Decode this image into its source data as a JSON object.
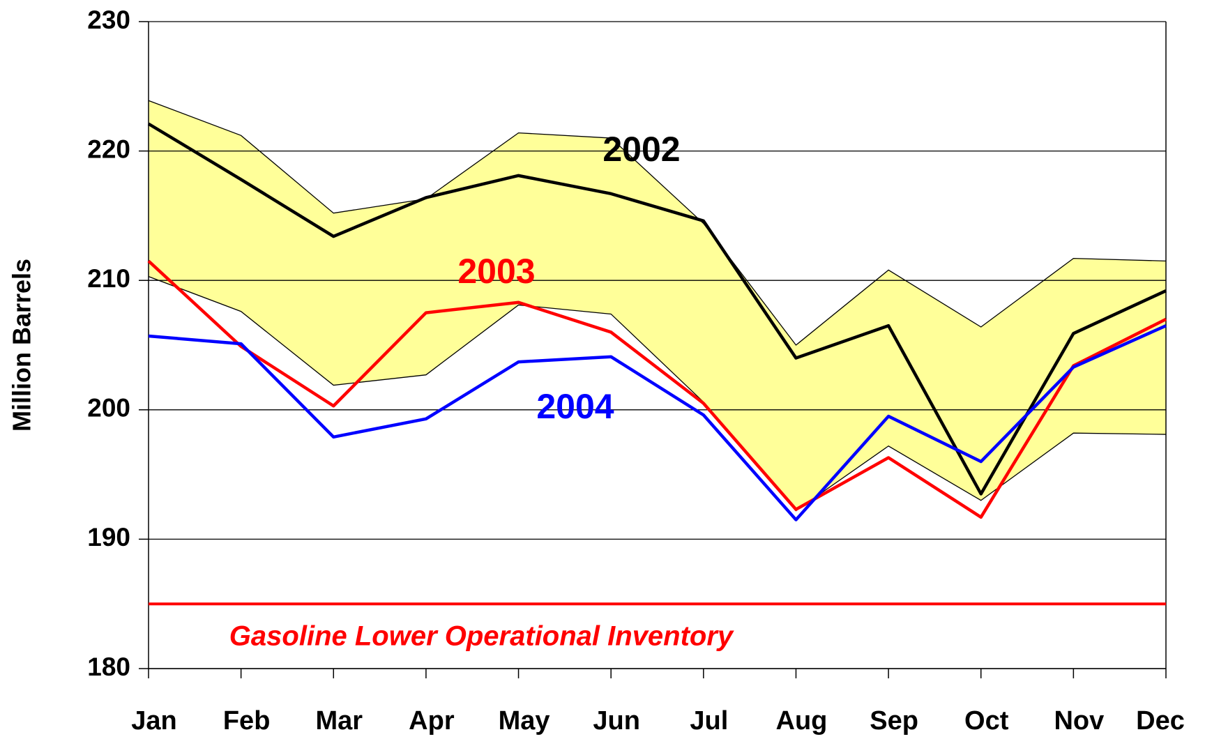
{
  "chart_data": {
    "type": "line",
    "y_label": "Million Barrels",
    "categories": [
      "Jan",
      "Feb",
      "Mar",
      "Apr",
      "May",
      "Jun",
      "Jul",
      "Aug",
      "Sep",
      "Oct",
      "Nov",
      "Dec"
    ],
    "ylim": [
      180,
      230
    ],
    "yticks": [
      180,
      190,
      200,
      210,
      220,
      230
    ],
    "grid": true,
    "band": {
      "color": "#ffff99",
      "upper": [
        223.9,
        221.2,
        215.2,
        216.3,
        221.4,
        221.0,
        214.4,
        205.0,
        210.8,
        206.4,
        211.7,
        211.5
      ],
      "lower": [
        210.3,
        207.6,
        201.9,
        202.7,
        208.1,
        207.4,
        200.6,
        192.2,
        197.2,
        193.0,
        198.2,
        198.1
      ]
    },
    "series": [
      {
        "name": "2002",
        "color": "#000000",
        "values": [
          222.1,
          217.8,
          213.4,
          216.4,
          218.1,
          216.7,
          214.6,
          204.0,
          206.5,
          193.5,
          205.9,
          209.2
        ]
      },
      {
        "name": "2003",
        "color": "#ff0000",
        "values": [
          211.5,
          204.9,
          200.3,
          207.5,
          208.3,
          206.0,
          200.5,
          192.3,
          196.3,
          191.7,
          203.4,
          207.0
        ]
      },
      {
        "name": "2004",
        "color": "#0000ff",
        "values": [
          205.7,
          205.1,
          197.9,
          199.3,
          203.7,
          204.1,
          199.6,
          191.5,
          199.5,
          196.0,
          203.3,
          206.5
        ]
      }
    ],
    "reference_line": {
      "value": 185,
      "label": "Gasoline Lower Operational Inventory",
      "color": "#ff0000"
    }
  }
}
